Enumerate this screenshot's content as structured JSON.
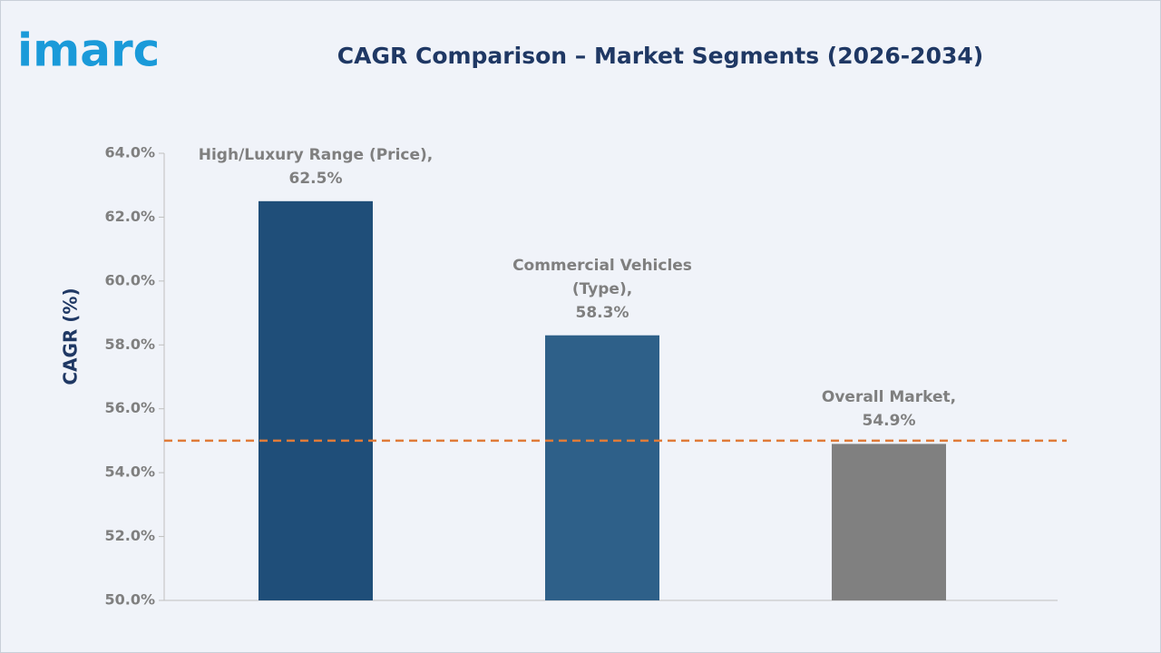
{
  "logo": "imarc",
  "chart_data": {
    "type": "bar",
    "title": "CAGR Comparison – Market Segments (2026-2034)",
    "y_label": "CAGR (%)",
    "categories": [
      "High/Luxury Range (Price),",
      "Commercial Vehicles (Type),",
      "Overall Market,"
    ],
    "values": [
      62.5,
      58.3,
      54.9
    ],
    "value_labels": [
      "62.5%",
      "58.3%",
      "54.9%"
    ],
    "colors": [
      "#1f4e79",
      "#2e6089",
      "#808080"
    ],
    "ylim": [
      50,
      64
    ],
    "yticks": [
      {
        "value": 50,
        "label": "50.0%"
      },
      {
        "value": 52,
        "label": "52.0%"
      },
      {
        "value": 54,
        "label": "54.0%"
      },
      {
        "value": 56,
        "label": "56.0%"
      },
      {
        "value": 58,
        "label": "58.0%"
      },
      {
        "value": 60,
        "label": "60.0%"
      },
      {
        "value": 62,
        "label": "62.0%"
      },
      {
        "value": 64,
        "label": "64.0%"
      }
    ],
    "reference_line": {
      "value": 55,
      "color": "#e07b39"
    }
  }
}
